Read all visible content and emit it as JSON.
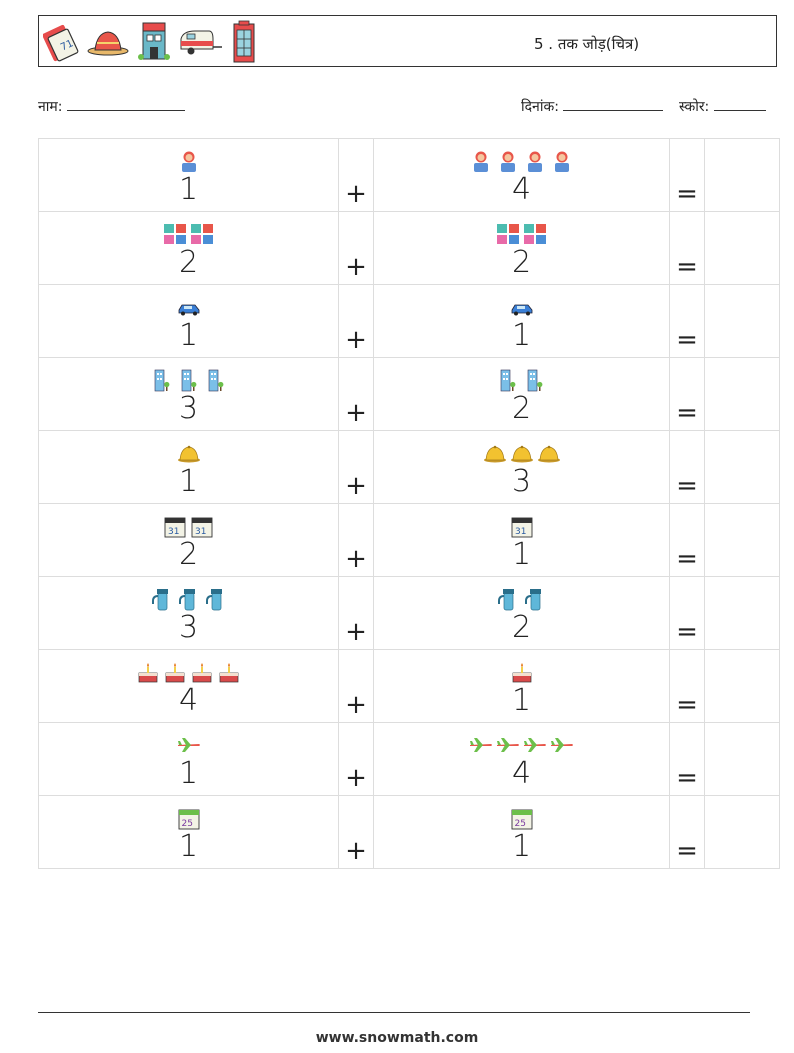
{
  "header": {
    "title": "5 . तक जोड़(चित्र)",
    "icons": [
      "ticket-icon",
      "sombrero-icon",
      "house-icon",
      "caravan-icon",
      "phone-booth-icon"
    ]
  },
  "info": {
    "name_label": "नाम:",
    "date_label": "दिनांक:",
    "score_label": "स्कोर:"
  },
  "operators": {
    "plus": "+",
    "equals": "="
  },
  "problems": [
    {
      "left": 1,
      "right": 4,
      "icon": "person-icon"
    },
    {
      "left": 2,
      "right": 2,
      "icon": "letter-blocks-icon"
    },
    {
      "left": 1,
      "right": 1,
      "icon": "car-icon"
    },
    {
      "left": 3,
      "right": 2,
      "icon": "buildings-icon"
    },
    {
      "left": 1,
      "right": 3,
      "icon": "dome-hat-icon"
    },
    {
      "left": 2,
      "right": 1,
      "icon": "calendar-31-icon"
    },
    {
      "left": 3,
      "right": 2,
      "icon": "thermos-icon"
    },
    {
      "left": 4,
      "right": 1,
      "icon": "cake-icon"
    },
    {
      "left": 1,
      "right": 4,
      "icon": "airplane-icon"
    },
    {
      "left": 1,
      "right": 1,
      "icon": "calendar-25-icon"
    }
  ],
  "footer": {
    "site": "www.snowmath.com"
  },
  "colors": {
    "border": "#333333",
    "grid": "#dddddd"
  }
}
